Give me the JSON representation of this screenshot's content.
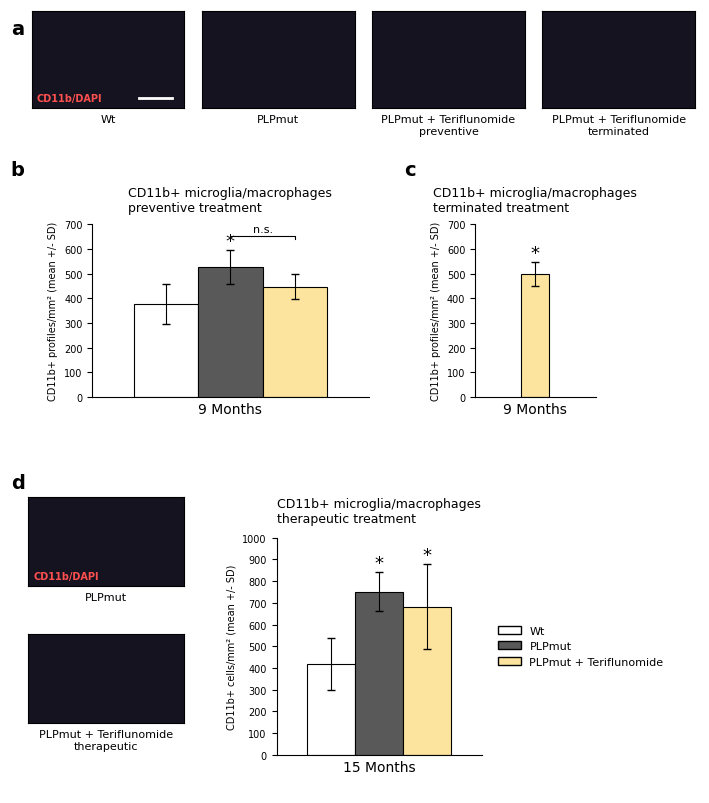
{
  "panel_labels": [
    "a",
    "b",
    "c",
    "d"
  ],
  "images": {
    "a": {
      "stain_label": "CD11b/DAPI",
      "captions": [
        "Wt",
        "PLPmut",
        "PLPmut + Teriflunomide\npreventive",
        "PLPmut + Teriflunomide\nterminated"
      ]
    },
    "d": {
      "stain_label": "CD11b/DAPI",
      "captions": [
        "PLPmut",
        "PLPmut + Teriflunomide\ntherapeutic"
      ]
    }
  },
  "chart_data": [
    {
      "type": "bar",
      "title": "CD11b+ microglia/macrophages\npreventive treatment",
      "y_label": "CD11b+ profiles/mm² (mean +/- SD)",
      "categories": [
        "9 Months"
      ],
      "series": [
        {
          "color": "#ffffff",
          "values": [
            377
          ],
          "errors": [
            80
          ]
        },
        {
          "color": "#595959",
          "values": [
            527
          ],
          "errors": [
            68
          ]
        },
        {
          "color": "#fde49e",
          "values": [
            447
          ],
          "errors": [
            50
          ]
        }
      ],
      "ylim": [
        0,
        700
      ],
      "yticks": [
        0,
        100,
        200,
        300,
        400,
        500,
        600,
        700
      ],
      "annotations": [
        {
          "text": "*",
          "series": [
            1
          ]
        },
        {
          "text": "n.s.",
          "series": [
            1,
            2
          ]
        }
      ]
    },
    {
      "type": "bar",
      "title": "CD11b+ microglia/macrophages\nterminated treatment",
      "y_label": "CD11b+ profiles/mm² (mean +/- SD)",
      "categories": [
        "9 Months"
      ],
      "series": [
        {
          "color": "#fde49e",
          "values": [
            497
          ],
          "errors": [
            48
          ]
        }
      ],
      "ylim": [
        0,
        700
      ],
      "yticks": [
        0,
        100,
        200,
        300,
        400,
        500,
        600,
        700
      ],
      "annotations": [
        {
          "text": "*",
          "series": [
            0
          ]
        }
      ]
    },
    {
      "type": "bar",
      "title": "CD11b+ microglia/macrophages\ntherapeutic treatment",
      "y_label": "CD11b+ cells/mm² (mean +/- SD)",
      "categories": [
        "15 Months"
      ],
      "series": [
        {
          "name": "Wt",
          "color": "#ffffff",
          "values": [
            420
          ],
          "errors": [
            120
          ]
        },
        {
          "name": "PLPmut",
          "color": "#595959",
          "values": [
            752
          ],
          "errors": [
            90
          ]
        },
        {
          "name": "PLPmut + Teriflunomide",
          "color": "#fde49e",
          "values": [
            682
          ],
          "errors": [
            197
          ]
        }
      ],
      "ylim": [
        0,
        1000
      ],
      "yticks": [
        0,
        100,
        200,
        300,
        400,
        500,
        600,
        700,
        800,
        900,
        1000
      ],
      "legend": "right",
      "annotations": [
        {
          "text": "*",
          "series": [
            1
          ]
        },
        {
          "text": "*",
          "series": [
            2
          ]
        }
      ]
    }
  ]
}
